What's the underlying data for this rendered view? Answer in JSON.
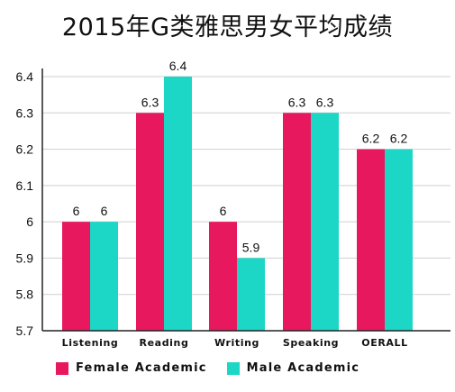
{
  "title": "2015年G类雅思男女平均成绩",
  "colors": {
    "female": "#E8185F",
    "male": "#1CD6C6",
    "grid": "#cfcfcf",
    "axis": "#222222",
    "text": "#111111"
  },
  "chart_data": {
    "type": "bar",
    "title": "2015年G类雅思男女平均成绩",
    "categories": [
      "Listening",
      "Reading",
      "Writing",
      "Speaking",
      "OERALL"
    ],
    "series": [
      {
        "name": "Female Academic",
        "values": [
          6,
          6.3,
          6,
          6.3,
          6.2
        ]
      },
      {
        "name": "Male Academic",
        "values": [
          6,
          6.4,
          5.9,
          6.3,
          6.2
        ]
      }
    ],
    "data_labels": [
      [
        "6",
        "6.3",
        "6",
        "6.3",
        "6.2"
      ],
      [
        "6",
        "6.4",
        "5.9",
        "6.3",
        "6.2"
      ]
    ],
    "y_ticks": [
      5.7,
      5.8,
      5.9,
      6,
      6.1,
      6.2,
      6.3,
      6.4
    ],
    "y_tick_labels": [
      "5.7",
      "5.8",
      "5.9",
      "6",
      "6.1",
      "6.2",
      "6.3",
      "6.4"
    ],
    "ylim": [
      5.7,
      6.4
    ],
    "xlabel": "",
    "ylabel": "",
    "grid": true,
    "legend_position": "bottom"
  }
}
